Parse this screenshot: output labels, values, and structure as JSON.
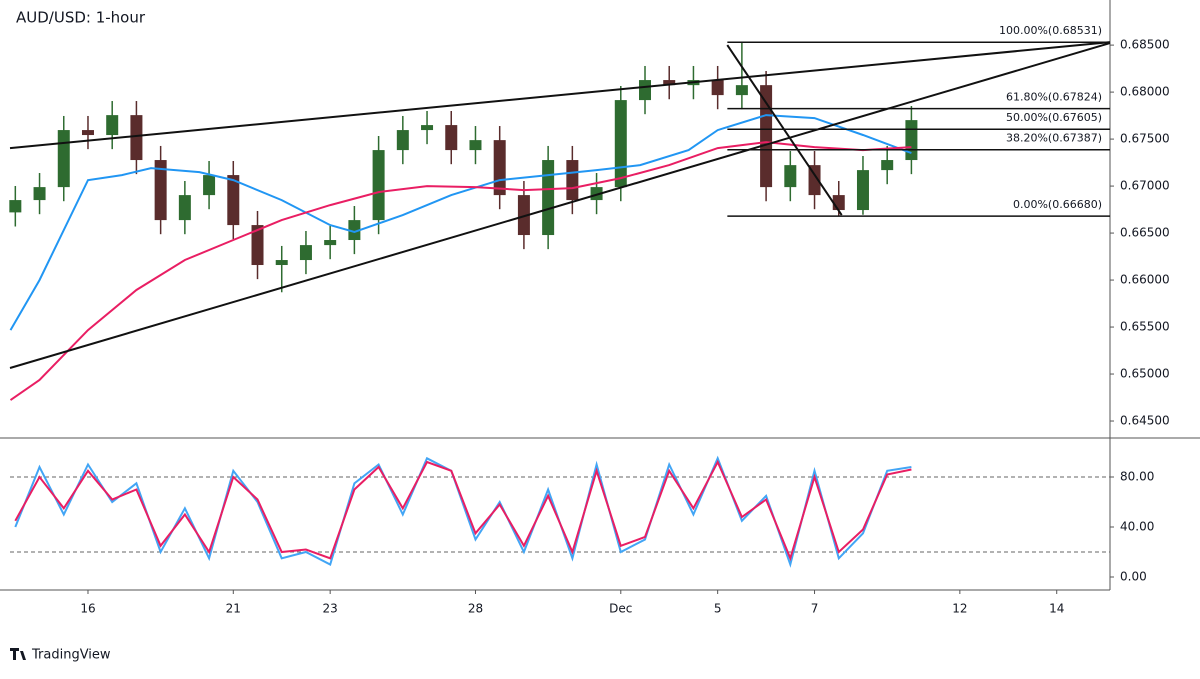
{
  "chart_data": [
    {
      "type": "candlestick",
      "title": "AUD/USD: 1-hour",
      "xlim": [
        -1.61,
        21.1
      ],
      "ylim": [
        0.6433,
        0.6898
      ],
      "yticks": [
        {
          "value": 0.685,
          "label": "0.68500"
        },
        {
          "value": 0.68,
          "label": "0.68000"
        },
        {
          "value": 0.675,
          "label": "0.67500"
        },
        {
          "value": 0.67,
          "label": "0.67000"
        },
        {
          "value": 0.665,
          "label": "0.66500"
        },
        {
          "value": 0.66,
          "label": "0.66000"
        },
        {
          "value": 0.655,
          "label": "0.65500"
        },
        {
          "value": 0.65,
          "label": "0.65000"
        },
        {
          "value": 0.645,
          "label": "0.64500"
        }
      ],
      "up_color": "#2e6b30",
      "down_color": "#5a2c2c",
      "x": [
        -1.5,
        -1,
        -0.5,
        0,
        0.5,
        1,
        1.5,
        2,
        2.5,
        3,
        3.5,
        4,
        4.5,
        5,
        5.5,
        6,
        6.5,
        7,
        7.5,
        8,
        8.5,
        9,
        9.5,
        10,
        10.5,
        11,
        11.5,
        12,
        12.5,
        13,
        13.5,
        14,
        14.5,
        15,
        15.5,
        16,
        16.5,
        17
      ],
      "open": [
        0.6672,
        0.66851,
        0.66989,
        0.67596,
        0.67543,
        0.67755,
        0.67277,
        0.66638,
        0.66904,
        0.67117,
        0.66585,
        0.6616,
        0.66213,
        0.66372,
        0.66426,
        0.66638,
        0.67383,
        0.67596,
        0.67649,
        0.67383,
        0.67489,
        0.66904,
        0.66479,
        0.67277,
        0.66851,
        0.66989,
        0.67915,
        0.68128,
        0.68074,
        0.68128,
        0.67968,
        0.68074,
        0.66989,
        0.67223,
        0.66904,
        0.66745,
        0.6717,
        0.67277
      ],
      "high": [
        0.67001,
        0.67139,
        0.67746,
        0.67746,
        0.67905,
        0.67905,
        0.67427,
        0.67054,
        0.67267,
        0.67267,
        0.66735,
        0.66363,
        0.66522,
        0.66576,
        0.66788,
        0.67533,
        0.67746,
        0.67799,
        0.67799,
        0.67639,
        0.67639,
        0.67054,
        0.67427,
        0.67427,
        0.67139,
        0.68065,
        0.68278,
        0.68278,
        0.68278,
        0.68278,
        0.68531,
        0.68224,
        0.67373,
        0.67373,
        0.67054,
        0.6732,
        0.67427,
        0.67852
      ],
      "low": [
        0.6657,
        0.66701,
        0.66839,
        0.67393,
        0.67393,
        0.67127,
        0.66488,
        0.66488,
        0.66754,
        0.66435,
        0.6601,
        0.6587,
        0.66063,
        0.66222,
        0.66276,
        0.66488,
        0.67233,
        0.67446,
        0.67233,
        0.67233,
        0.66754,
        0.66329,
        0.66329,
        0.66701,
        0.66701,
        0.66839,
        0.67765,
        0.67924,
        0.67924,
        0.67818,
        0.67818,
        0.66839,
        0.66839,
        0.66754,
        0.6668,
        0.66695,
        0.6702,
        0.67127
      ],
      "close": [
        0.66851,
        0.66989,
        0.67596,
        0.67543,
        0.67755,
        0.67277,
        0.66638,
        0.66904,
        0.67117,
        0.66585,
        0.6616,
        0.66213,
        0.66372,
        0.66426,
        0.66638,
        0.67383,
        0.67596,
        0.67649,
        0.67383,
        0.67489,
        0.66904,
        0.66479,
        0.67277,
        0.66851,
        0.66989,
        0.67915,
        0.68128,
        0.68074,
        0.68128,
        0.67968,
        0.68074,
        0.66989,
        0.67223,
        0.66904,
        0.66745,
        0.6717,
        0.67277,
        0.67702
      ],
      "series": [
        {
          "color": "#2196f3",
          "x": [
            -1.6,
            -1,
            0,
            0.7,
            1.3,
            2.3,
            3,
            4,
            5,
            5.5,
            6.5,
            7.5,
            8.5,
            9.5,
            10.5,
            11.4,
            12.4,
            13,
            14,
            15,
            16,
            17
          ],
          "values": [
            0.65468,
            0.66,
            0.67064,
            0.67117,
            0.67191,
            0.67149,
            0.67064,
            0.66851,
            0.66585,
            0.66511,
            0.66691,
            0.66904,
            0.67064,
            0.67117,
            0.6717,
            0.67223,
            0.67383,
            0.67596,
            0.67755,
            0.67723,
            0.67543,
            0.67351
          ]
        },
        {
          "color": "#e91e63",
          "x": [
            -1.6,
            -1,
            0,
            1,
            2,
            3,
            4,
            5,
            6,
            7,
            8,
            9,
            10,
            11,
            12,
            13,
            14,
            15,
            16,
            17
          ],
          "values": [
            0.64723,
            0.64936,
            0.65468,
            0.65894,
            0.66213,
            0.66426,
            0.66638,
            0.66798,
            0.66936,
            0.67,
            0.66989,
            0.66957,
            0.66979,
            0.67085,
            0.67223,
            0.67404,
            0.67468,
            0.67415,
            0.67383,
            0.67415
          ]
        }
      ],
      "trend_lines": [
        {
          "x": [
            -1.61,
            21.1
          ],
          "values": [
            0.67404,
            0.68532
          ]
        },
        {
          "x": [
            -1.61,
            21.1
          ],
          "values": [
            0.65064,
            0.68521
          ]
        },
        {
          "x": [
            13.2,
            15.56
          ],
          "values": [
            0.685,
            0.66691
          ]
        }
      ],
      "fib_x_start": 13.2,
      "fib_levels": [
        {
          "value": 0.68531,
          "label": "100.00%(0.68531)"
        },
        {
          "value": 0.67824,
          "label": "61.80%(0.67824)"
        },
        {
          "value": 0.67605,
          "label": "50.00%(0.67605)"
        },
        {
          "value": 0.67387,
          "label": "38.20%(0.67387)"
        },
        {
          "value": 0.6668,
          "label": "0.00%(0.66680)"
        }
      ]
    },
    {
      "type": "line",
      "xlim": [
        -1.61,
        21.1
      ],
      "ylim": [
        -10.4,
        109.6
      ],
      "yticks": [
        {
          "value": 80,
          "label": "80.00"
        },
        {
          "value": 40,
          "label": "40.00"
        },
        {
          "value": 0,
          "label": "0.00"
        }
      ],
      "levels": [
        80,
        20
      ],
      "xticks": [
        {
          "value": 0,
          "label": "16"
        },
        {
          "value": 3,
          "label": "21"
        },
        {
          "value": 5,
          "label": "23"
        },
        {
          "value": 8,
          "label": "28"
        },
        {
          "value": 11,
          "label": "Dec"
        },
        {
          "value": 13,
          "label": "5"
        },
        {
          "value": 15,
          "label": "7"
        },
        {
          "value": 18,
          "label": "12"
        },
        {
          "value": 20,
          "label": "14"
        }
      ],
      "x": [
        -1.5,
        -1,
        -0.5,
        0,
        0.5,
        1,
        1.5,
        2,
        2.5,
        3,
        3.5,
        4,
        4.5,
        5,
        5.5,
        6,
        6.5,
        7,
        7.5,
        8,
        8.5,
        9,
        9.5,
        10,
        10.5,
        11,
        11.5,
        12,
        12.5,
        13,
        13.5,
        14,
        14.5,
        15,
        15.5,
        16,
        16.5,
        17
      ],
      "series": [
        {
          "color": "#42a5f5",
          "values": [
            40,
            88,
            50,
            90,
            60,
            75,
            20,
            55,
            15,
            85,
            60,
            15,
            20,
            10,
            75,
            90,
            50,
            95,
            85,
            30,
            60,
            20,
            70,
            15,
            90,
            20,
            30,
            90,
            50,
            95,
            45,
            65,
            10,
            85,
            15,
            35,
            85,
            88
          ]
        },
        {
          "color": "#e91e63",
          "values": [
            45,
            80,
            55,
            85,
            62,
            70,
            25,
            50,
            20,
            80,
            62,
            20,
            22,
            15,
            70,
            88,
            55,
            92,
            85,
            35,
            58,
            25,
            65,
            20,
            85,
            25,
            32,
            85,
            55,
            92,
            48,
            62,
            15,
            80,
            20,
            38,
            82,
            86
          ]
        }
      ]
    }
  ],
  "footer": "TradingView"
}
